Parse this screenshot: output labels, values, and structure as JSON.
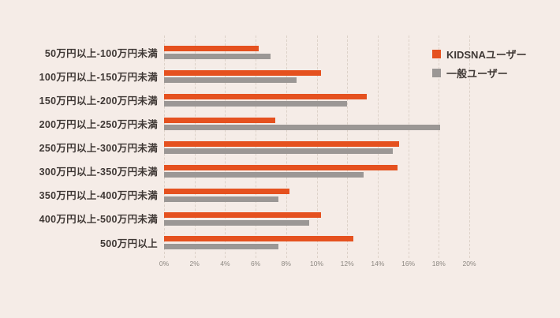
{
  "chart_data": {
    "type": "bar",
    "orientation": "horizontal",
    "title": "",
    "xlabel": "",
    "ylabel": "",
    "categories": [
      "50万円以上-100万円未満",
      "100万円以上-150万円未満",
      "150万円以上-200万円未満",
      "200万円以上-250万円未満",
      "250万円以上-300万円未満",
      "300万円以上-350万円未満",
      "350万円以上-400万円未満",
      "400万円以上-500万円未満",
      "500万円以上"
    ],
    "series": [
      {
        "name": "KIDSNAユーザー",
        "color": "#e5511f",
        "values": [
          6.2,
          10.3,
          13.3,
          7.3,
          15.4,
          15.3,
          8.2,
          10.3,
          12.4
        ]
      },
      {
        "name": "一般ユーザー",
        "color": "#9b9795",
        "values": [
          7.0,
          8.7,
          12.0,
          18.1,
          15.0,
          13.1,
          7.5,
          9.5,
          7.5
        ]
      }
    ],
    "xlim": [
      0,
      20
    ],
    "x_tick_values": [
      0,
      2,
      4,
      6,
      8,
      10,
      12,
      14,
      16,
      18,
      20
    ],
    "x_ticks": [
      "0%",
      "2%",
      "4%",
      "6%",
      "8%",
      "10%",
      "12%",
      "14%",
      "16%",
      "18%",
      "20%"
    ],
    "grid": true,
    "legend_position": "top-right"
  },
  "colors": {
    "background": "#f5ece7",
    "kidsna_orange": "#e5511f",
    "general_gray": "#9b9795",
    "label_text": "#3f3835",
    "tick_text": "#8c8781",
    "gridline": "#ddd2c9"
  }
}
